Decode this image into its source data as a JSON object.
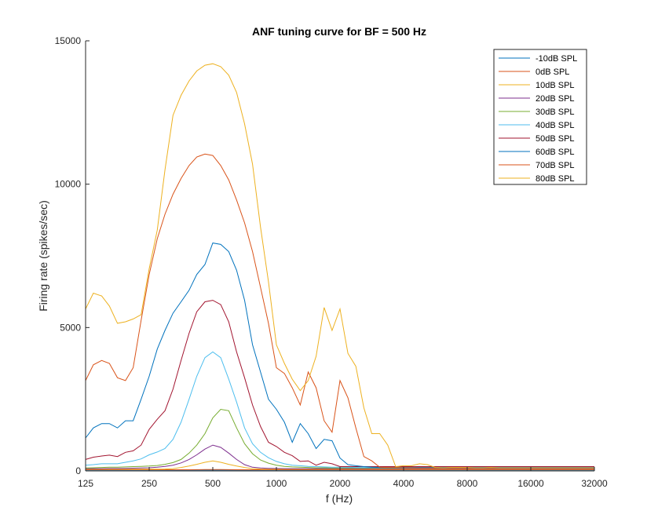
{
  "chart_data": {
    "type": "line",
    "title": "ANF tuning curve for BF = 500 Hz",
    "xlabel": "f (Hz)",
    "ylabel": "Firing rate (spikes/sec)",
    "xscale": "log2",
    "xlim": [
      125,
      32000
    ],
    "ylim": [
      0,
      15000
    ],
    "xticks": [
      125,
      250,
      500,
      1000,
      2000,
      4000,
      8000,
      16000,
      32000
    ],
    "xtick_labels": [
      "125",
      "250",
      "500",
      "1000",
      "2000",
      "4000",
      "8000",
      "16000",
      "32000"
    ],
    "yticks": [
      0,
      5000,
      10000,
      15000
    ],
    "ytick_labels": [
      "0",
      "5000",
      "10000",
      "15000"
    ],
    "grid": false,
    "legend_position": "top-right",
    "x": [
      125,
      136,
      149,
      162,
      177,
      193,
      210,
      229,
      250,
      273,
      297,
      324,
      354,
      386,
      420,
      459,
      500,
      545,
      595,
      648,
      707,
      771,
      841,
      917,
      1000,
      1091,
      1189,
      1297,
      1414,
      1542,
      1682,
      1834,
      2000,
      2181,
      2378,
      2594,
      2828,
      3084,
      3364,
      3668,
      4000,
      4362,
      4757,
      5187,
      5657,
      6169,
      6727,
      7336,
      8000,
      8724,
      9514,
      10375,
      11314,
      12338,
      13454,
      14672,
      16000,
      17448,
      19027,
      20749,
      22627,
      24675,
      26909,
      29344,
      32000
    ],
    "series": [
      {
        "name": "-10dB SPL",
        "color": "#0072BD",
        "values": [
          30,
          30,
          30,
          30,
          30,
          30,
          30,
          30,
          30,
          30,
          30,
          30,
          30,
          30,
          30,
          30,
          30,
          30,
          30,
          30,
          30,
          30,
          30,
          30,
          30,
          30,
          30,
          30,
          30,
          30,
          30,
          30,
          30,
          30,
          30,
          30,
          30,
          30,
          30,
          30,
          30,
          30,
          30,
          30,
          30,
          30,
          30,
          30,
          30,
          30,
          30,
          30,
          30,
          30,
          30,
          30,
          30,
          30,
          30,
          30,
          30,
          30,
          30,
          30,
          30
        ]
      },
      {
        "name": "0dB SPL",
        "color": "#D95319",
        "values": [
          40,
          40,
          40,
          40,
          40,
          40,
          40,
          40,
          40,
          40,
          40,
          40,
          40,
          42,
          45,
          48,
          50,
          48,
          45,
          42,
          40,
          40,
          40,
          40,
          40,
          40,
          40,
          40,
          40,
          40,
          40,
          40,
          40,
          40,
          40,
          40,
          40,
          40,
          40,
          40,
          40,
          40,
          40,
          40,
          40,
          40,
          40,
          40,
          40,
          40,
          40,
          40,
          40,
          40,
          40,
          40,
          40,
          40,
          40,
          40,
          40,
          40,
          40,
          40,
          40
        ]
      },
      {
        "name": "10dB SPL",
        "color": "#EDB120",
        "values": [
          60,
          60,
          60,
          60,
          60,
          60,
          60,
          60,
          60,
          62,
          65,
          80,
          120,
          170,
          230,
          300,
          350,
          300,
          230,
          170,
          120,
          80,
          65,
          60,
          60,
          60,
          60,
          60,
          60,
          60,
          60,
          60,
          60,
          60,
          60,
          60,
          60,
          60,
          60,
          60,
          60,
          60,
          60,
          60,
          60,
          60,
          60,
          60,
          60,
          60,
          60,
          60,
          60,
          60,
          60,
          60,
          60,
          60,
          60,
          60,
          60,
          60,
          60,
          60,
          60
        ]
      },
      {
        "name": "20dB SPL",
        "color": "#7E2F8E",
        "values": [
          80,
          80,
          80,
          85,
          85,
          90,
          95,
          100,
          110,
          130,
          160,
          200,
          280,
          400,
          560,
          760,
          900,
          820,
          620,
          400,
          220,
          130,
          100,
          90,
          85,
          80,
          80,
          80,
          80,
          80,
          80,
          80,
          80,
          80,
          80,
          80,
          80,
          80,
          80,
          80,
          80,
          80,
          80,
          80,
          80,
          80,
          80,
          80,
          80,
          80,
          80,
          80,
          80,
          80,
          80,
          80,
          80,
          80,
          80,
          80,
          80,
          80,
          80,
          80,
          80
        ]
      },
      {
        "name": "30dB SPL",
        "color": "#77AC30",
        "values": [
          100,
          110,
          120,
          130,
          130,
          140,
          150,
          160,
          170,
          190,
          230,
          290,
          400,
          620,
          900,
          1300,
          1850,
          2150,
          2100,
          1500,
          950,
          600,
          380,
          270,
          200,
          160,
          140,
          130,
          120,
          110,
          110,
          105,
          100,
          100,
          100,
          100,
          100,
          100,
          100,
          100,
          100,
          100,
          100,
          100,
          100,
          100,
          100,
          100,
          100,
          100,
          100,
          100,
          100,
          100,
          100,
          100,
          100,
          100,
          100,
          100,
          100,
          100,
          100,
          100,
          100
        ]
      },
      {
        "name": "40dB SPL",
        "color": "#4DBEEE",
        "values": [
          200,
          220,
          250,
          250,
          250,
          300,
          350,
          420,
          560,
          660,
          780,
          1100,
          1700,
          2500,
          3300,
          3950,
          4150,
          3950,
          3200,
          2400,
          1500,
          950,
          650,
          460,
          330,
          250,
          200,
          180,
          160,
          150,
          140,
          130,
          130,
          125,
          120,
          120,
          120,
          120,
          120,
          120,
          120,
          120,
          120,
          120,
          120,
          120,
          120,
          120,
          120,
          120,
          120,
          120,
          120,
          120,
          120,
          120,
          120,
          120,
          120,
          120,
          120,
          120,
          120,
          120,
          120
        ]
      },
      {
        "name": "50dB SPL",
        "color": "#A2142F",
        "values": [
          400,
          480,
          520,
          550,
          500,
          650,
          700,
          900,
          1450,
          1800,
          2100,
          2850,
          3850,
          4800,
          5550,
          5900,
          5950,
          5800,
          5200,
          4150,
          3250,
          2300,
          1550,
          1000,
          850,
          650,
          530,
          330,
          350,
          200,
          300,
          250,
          150,
          150,
          150,
          150,
          150,
          150,
          150,
          150,
          150,
          150,
          150,
          150,
          150,
          150,
          150,
          150,
          150,
          150,
          150,
          150,
          150,
          150,
          150,
          150,
          150,
          150,
          150,
          150,
          150,
          150,
          150,
          150,
          150
        ]
      },
      {
        "name": "60dB SPL",
        "color": "#0072BD",
        "values": [
          1150,
          1500,
          1650,
          1650,
          1500,
          1750,
          1750,
          2500,
          3300,
          4250,
          4900,
          5500,
          5900,
          6300,
          6850,
          7200,
          7950,
          7900,
          7650,
          7000,
          5950,
          4400,
          3450,
          2500,
          2150,
          1700,
          1000,
          1650,
          1300,
          780,
          1100,
          1050,
          450,
          220,
          180,
          150,
          130,
          120,
          120,
          120,
          120,
          120,
          120,
          120,
          120,
          120,
          120,
          120,
          120,
          120,
          120,
          120,
          120,
          120,
          120,
          120,
          120,
          120,
          120,
          120,
          120,
          120,
          120,
          120,
          120
        ]
      },
      {
        "name": "70dB SPL",
        "color": "#D95319",
        "values": [
          3150,
          3700,
          3850,
          3750,
          3250,
          3150,
          3600,
          5250,
          6850,
          8100,
          8950,
          9650,
          10200,
          10650,
          10950,
          11050,
          11000,
          10650,
          10150,
          9450,
          8650,
          7650,
          6400,
          5150,
          3600,
          3400,
          2900,
          2300,
          3450,
          2900,
          1750,
          1350,
          3150,
          2550,
          1500,
          500,
          350,
          130,
          120,
          120,
          110,
          110,
          100,
          100,
          100,
          100,
          100,
          100,
          100,
          100,
          100,
          100,
          100,
          100,
          100,
          100,
          100,
          100,
          100,
          100,
          100,
          100,
          100,
          100,
          100
        ]
      },
      {
        "name": "80dB SPL",
        "color": "#EDB120",
        "values": [
          5650,
          6200,
          6100,
          5750,
          5150,
          5200,
          5300,
          5450,
          7050,
          8400,
          10500,
          12400,
          13100,
          13600,
          13950,
          14150,
          14200,
          14100,
          13800,
          13200,
          12100,
          10700,
          8500,
          6600,
          4400,
          3750,
          3200,
          2800,
          3150,
          4000,
          5700,
          4900,
          5650,
          4100,
          3650,
          2200,
          1300,
          1300,
          900,
          150,
          180,
          180,
          250,
          220,
          120,
          110,
          120,
          120,
          120,
          110,
          110,
          120,
          110,
          110,
          110,
          110,
          110,
          110,
          110,
          110,
          110,
          110,
          110,
          110,
          110
        ]
      }
    ]
  }
}
